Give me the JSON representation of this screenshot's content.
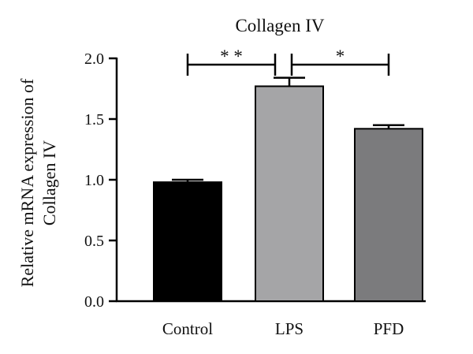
{
  "chart_data": {
    "type": "bar",
    "title": "Collagen IV",
    "ylabel_lines": [
      "Relative mRNA expression of",
      "Collagen IV"
    ],
    "xlabel": "",
    "categories": [
      "Control",
      "LPS",
      "PFD"
    ],
    "values": [
      0.98,
      1.77,
      1.42
    ],
    "errors": [
      0.02,
      0.07,
      0.03
    ],
    "colors": [
      "#000000",
      "#a5a5a7",
      "#7b7b7d"
    ],
    "ylim": [
      0,
      2.0
    ],
    "yticks": [
      "0.0",
      "0.5",
      "1.0",
      "1.5",
      "2.0"
    ],
    "grid": false,
    "significance": [
      {
        "from": "Control",
        "to": "LPS",
        "label": "* *"
      },
      {
        "from": "LPS",
        "to": "PFD",
        "label": "*"
      }
    ]
  }
}
